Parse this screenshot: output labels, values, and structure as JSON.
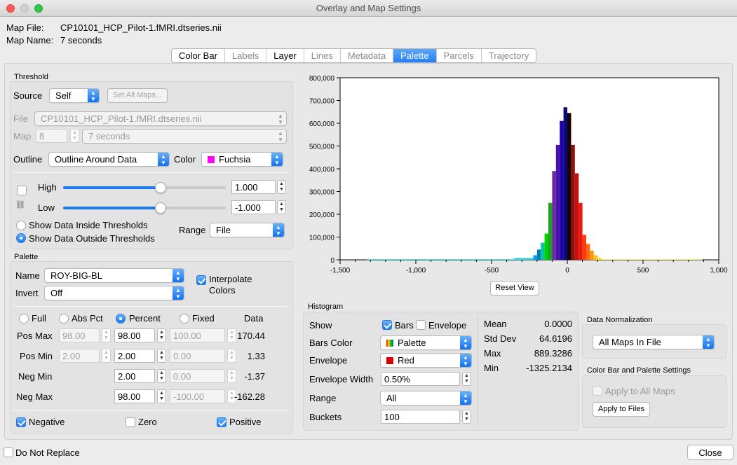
{
  "window": {
    "title": "Overlay and Map Settings"
  },
  "header": {
    "map_file_label": "Map File:",
    "map_file_value": "CP10101_HCP_Pilot-1.fMRI.dtseries.nii",
    "map_name_label": "Map Name:",
    "map_name_value": "7 seconds"
  },
  "tabs": [
    {
      "label": "Color Bar",
      "state": "normal"
    },
    {
      "label": "Labels",
      "state": "inactive"
    },
    {
      "label": "Layer",
      "state": "normal"
    },
    {
      "label": "Lines",
      "state": "inactive"
    },
    {
      "label": "Metadata",
      "state": "inactive"
    },
    {
      "label": "Palette",
      "state": "active"
    },
    {
      "label": "Parcels",
      "state": "inactive"
    },
    {
      "label": "Trajectory",
      "state": "inactive"
    }
  ],
  "threshold": {
    "title": "Threshold",
    "source_label": "Source",
    "source_value": "Self",
    "set_all_maps": "Set All Maps...",
    "file_label": "File",
    "file_value": "CP10101_HCP_Pilot-1.fMRI.dtseries.nii",
    "map_label": "Map",
    "map_index": "8",
    "map_value": "7 seconds",
    "outline_label": "Outline",
    "outline_value": "Outline Around Data",
    "color_label": "Color",
    "color_value": "Fuchsia",
    "color_swatch": "#ff00ff",
    "high_label": "High",
    "high_value": "1.000",
    "high_fraction": 0.6,
    "low_label": "Low",
    "low_value": "-1.000",
    "low_fraction": 0.6,
    "link_icon": "link-icon",
    "show_inside": "Show Data Inside Thresholds",
    "show_outside": "Show Data Outside Thresholds",
    "range_label": "Range",
    "range_value": "File"
  },
  "palette": {
    "title": "Palette",
    "name_label": "Name",
    "name_value": "ROY-BIG-BL",
    "invert_label": "Invert",
    "invert_value": "Off",
    "interpolate_line1": "Interpolate",
    "interpolate_line2": "Colors",
    "modes": [
      "Full",
      "Abs Pct",
      "Percent",
      "Fixed"
    ],
    "data_header": "Data",
    "rows": [
      {
        "label": "Pos Max",
        "abs": "98.00",
        "pct": "98.00",
        "fixed": "100.00",
        "data": "170.44",
        "has_abs": true
      },
      {
        "label": "Pos Min",
        "abs": "2.00",
        "pct": "2.00",
        "fixed": "0.00",
        "data": "1.33",
        "has_abs": true
      },
      {
        "label": "Neg Min",
        "abs": "",
        "pct": "2.00",
        "fixed": "0.00",
        "data": "-1.37",
        "has_abs": false
      },
      {
        "label": "Neg Max",
        "abs": "",
        "pct": "98.00",
        "fixed": "-100.00",
        "data": "-162.28",
        "has_abs": false
      }
    ],
    "negative": "Negative",
    "zero": "Zero",
    "positive": "Positive"
  },
  "histogram": {
    "title": "Histogram",
    "show_label": "Show",
    "bars_label": "Bars",
    "envelope_label": "Envelope",
    "bars_color_label": "Bars Color",
    "bars_color_value": "Palette",
    "envelope_color_label": "Envelope",
    "envelope_color_value": "Red",
    "envelope_swatch": "#e00000",
    "envelope_width_label": "Envelope Width",
    "envelope_width_value": "0.50%",
    "range_label": "Range",
    "range_value": "All",
    "buckets_label": "Buckets",
    "buckets_value": "100",
    "stats": [
      {
        "label": "Mean",
        "value": "0.0000"
      },
      {
        "label": "Std Dev",
        "value": "64.6196"
      },
      {
        "label": "Max",
        "value": "889.3286"
      },
      {
        "label": "Min",
        "value": "-1325.2134"
      }
    ],
    "reset_view": "Reset View"
  },
  "normalization": {
    "title": "Data Normalization",
    "value": "All Maps In File"
  },
  "cbps": {
    "title": "Color Bar and Palette Settings",
    "apply_all": "Apply to All Maps",
    "apply_files": "Apply to Files"
  },
  "footer": {
    "do_not_replace": "Do Not Replace",
    "close": "Close"
  },
  "chart_data": {
    "type": "bar",
    "ylim": [
      0,
      800000
    ],
    "xlim": [
      -1500,
      1000
    ],
    "yticks": [
      "0",
      "100,000",
      "200,000",
      "300,000",
      "400,000",
      "500,000",
      "600,000",
      "700,000",
      "800,000"
    ],
    "xticks": [
      "-1,500",
      "-1,000",
      "-500",
      "0",
      "500",
      "1,000"
    ],
    "bins": [
      {
        "x0": -1325,
        "x1": -350,
        "y": 3000,
        "color": "#2fe8ef"
      },
      {
        "x0": -350,
        "x1": -225,
        "y": 8000,
        "color": "#22d8e8"
      },
      {
        "x0": -225,
        "x1": -200,
        "y": 20000,
        "color": "#00a0f0"
      },
      {
        "x0": -200,
        "x1": -175,
        "y": 45000,
        "color": "#007ab8"
      },
      {
        "x0": -175,
        "x1": -150,
        "y": 75000,
        "color": "#00c8a0"
      },
      {
        "x0": -150,
        "x1": -125,
        "y": 115000,
        "color": "#00d000"
      },
      {
        "x0": -125,
        "x1": -100,
        "y": 250000,
        "color": "#20a020"
      },
      {
        "x0": -100,
        "x1": -75,
        "y": 390000,
        "color": "#6a2aa0"
      },
      {
        "x0": -75,
        "x1": -50,
        "y": 505000,
        "color": "#4a10b0"
      },
      {
        "x0": -50,
        "x1": -25,
        "y": 610000,
        "color": "#2000a8"
      },
      {
        "x0": -25,
        "x1": 0,
        "y": 670000,
        "color": "#0a0a80"
      },
      {
        "x0": 0,
        "x1": 25,
        "y": 645000,
        "color": "#1a0000"
      },
      {
        "x0": 25,
        "x1": 50,
        "y": 505000,
        "color": "#901010"
      },
      {
        "x0": 50,
        "x1": 75,
        "y": 380000,
        "color": "#c81010"
      },
      {
        "x0": 75,
        "x1": 100,
        "y": 250000,
        "color": "#e81a10"
      },
      {
        "x0": 100,
        "x1": 125,
        "y": 110000,
        "color": "#ff3a10"
      },
      {
        "x0": 125,
        "x1": 150,
        "y": 70000,
        "color": "#ff6a10"
      },
      {
        "x0": 150,
        "x1": 175,
        "y": 40000,
        "color": "#ff9a10"
      },
      {
        "x0": 175,
        "x1": 200,
        "y": 20000,
        "color": "#ffc010"
      },
      {
        "x0": 200,
        "x1": 225,
        "y": 10000,
        "color": "#ffe020"
      },
      {
        "x0": 225,
        "x1": 890,
        "y": 3000,
        "color": "#f6f060"
      }
    ]
  }
}
